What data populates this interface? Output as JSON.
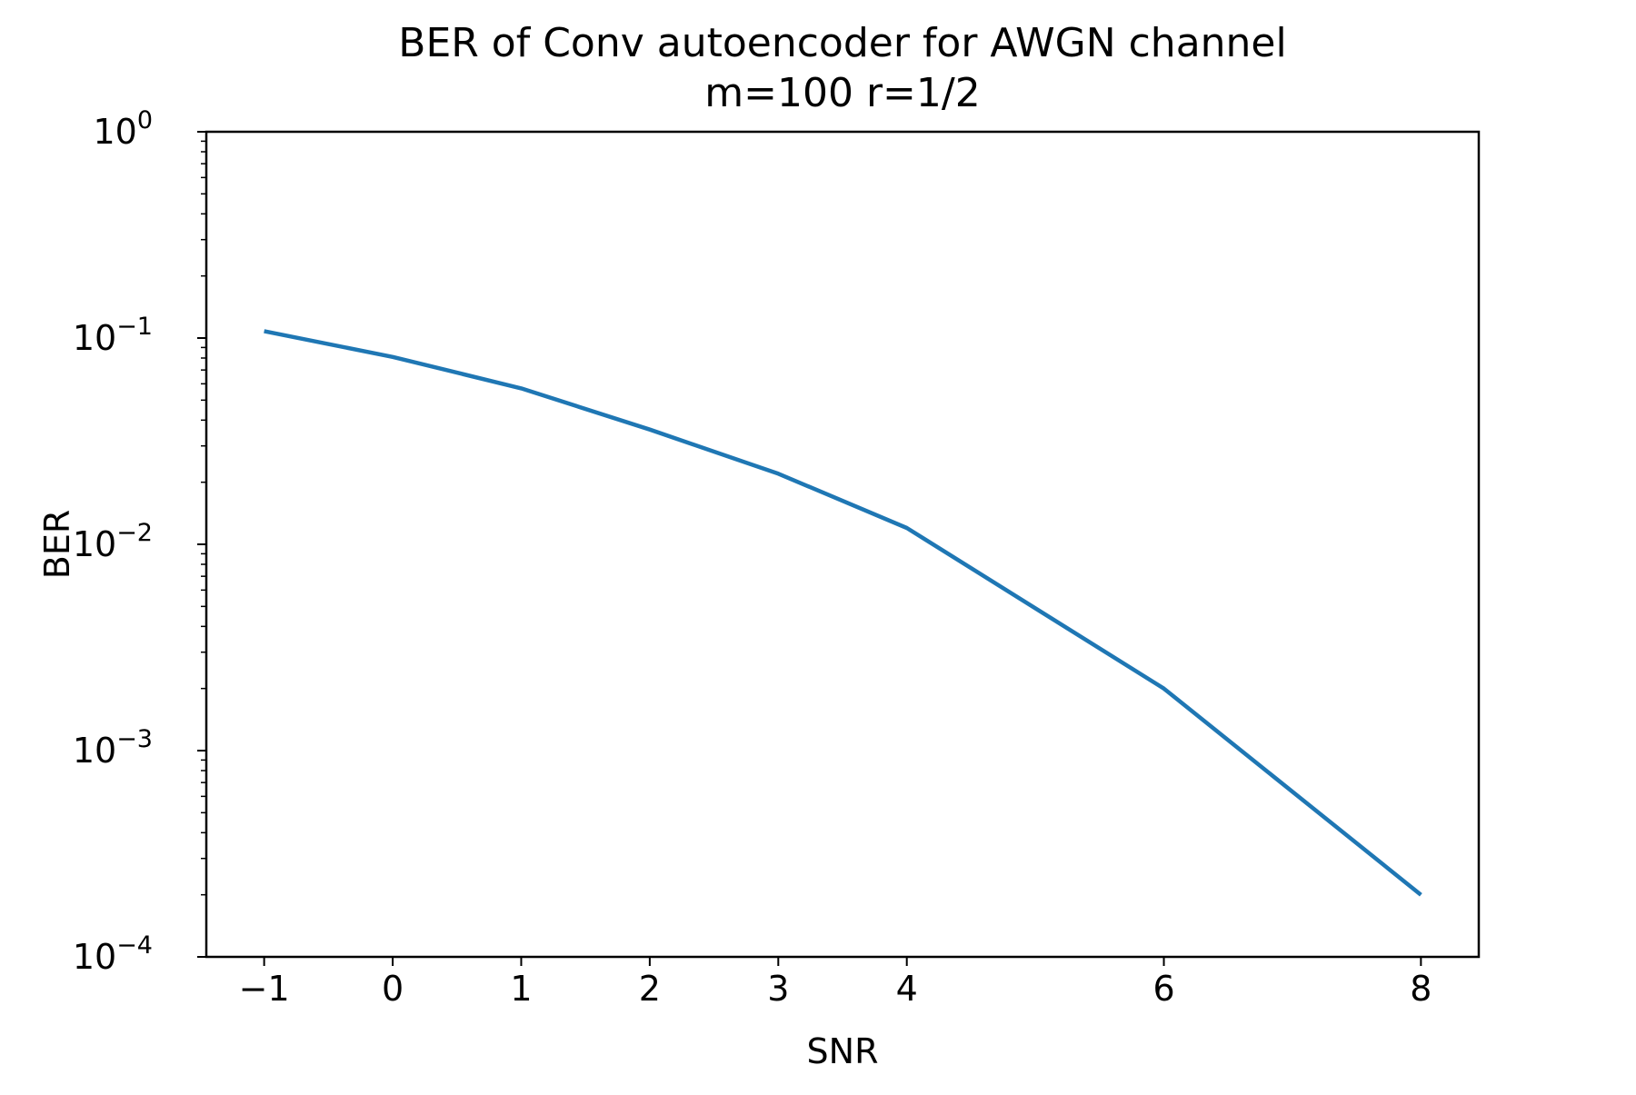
{
  "chart_data": {
    "type": "line",
    "title": "BER of Conv autoencoder for AWGN channel",
    "subtitle": "m=100 r=1/2",
    "xlabel": "SNR",
    "ylabel": "BER",
    "x_scale": "linear",
    "y_scale": "log",
    "xlim": [
      -1.45,
      8.45
    ],
    "ylim": [
      0.0001,
      1
    ],
    "grid": false,
    "x_ticks": [
      -1,
      0,
      1,
      2,
      3,
      4,
      6,
      8
    ],
    "x_tick_labels": [
      "−1",
      "0",
      "1",
      "2",
      "3",
      "4",
      "6",
      "8"
    ],
    "y_ticks": [
      {
        "base": "10",
        "exp": "0",
        "value": 1
      },
      {
        "base": "10",
        "exp": "−1",
        "value": 0.1
      },
      {
        "base": "10",
        "exp": "−2",
        "value": 0.01
      },
      {
        "base": "10",
        "exp": "−3",
        "value": 0.001
      },
      {
        "base": "10",
        "exp": "−4",
        "value": 0.0001
      }
    ],
    "series": [
      {
        "color": "#1f77b4",
        "x": [
          -1,
          0,
          1,
          2,
          3,
          4,
          6,
          8
        ],
        "y": [
          0.108,
          0.081,
          0.057,
          0.036,
          0.022,
          0.012,
          0.002,
          0.0002
        ]
      }
    ]
  }
}
